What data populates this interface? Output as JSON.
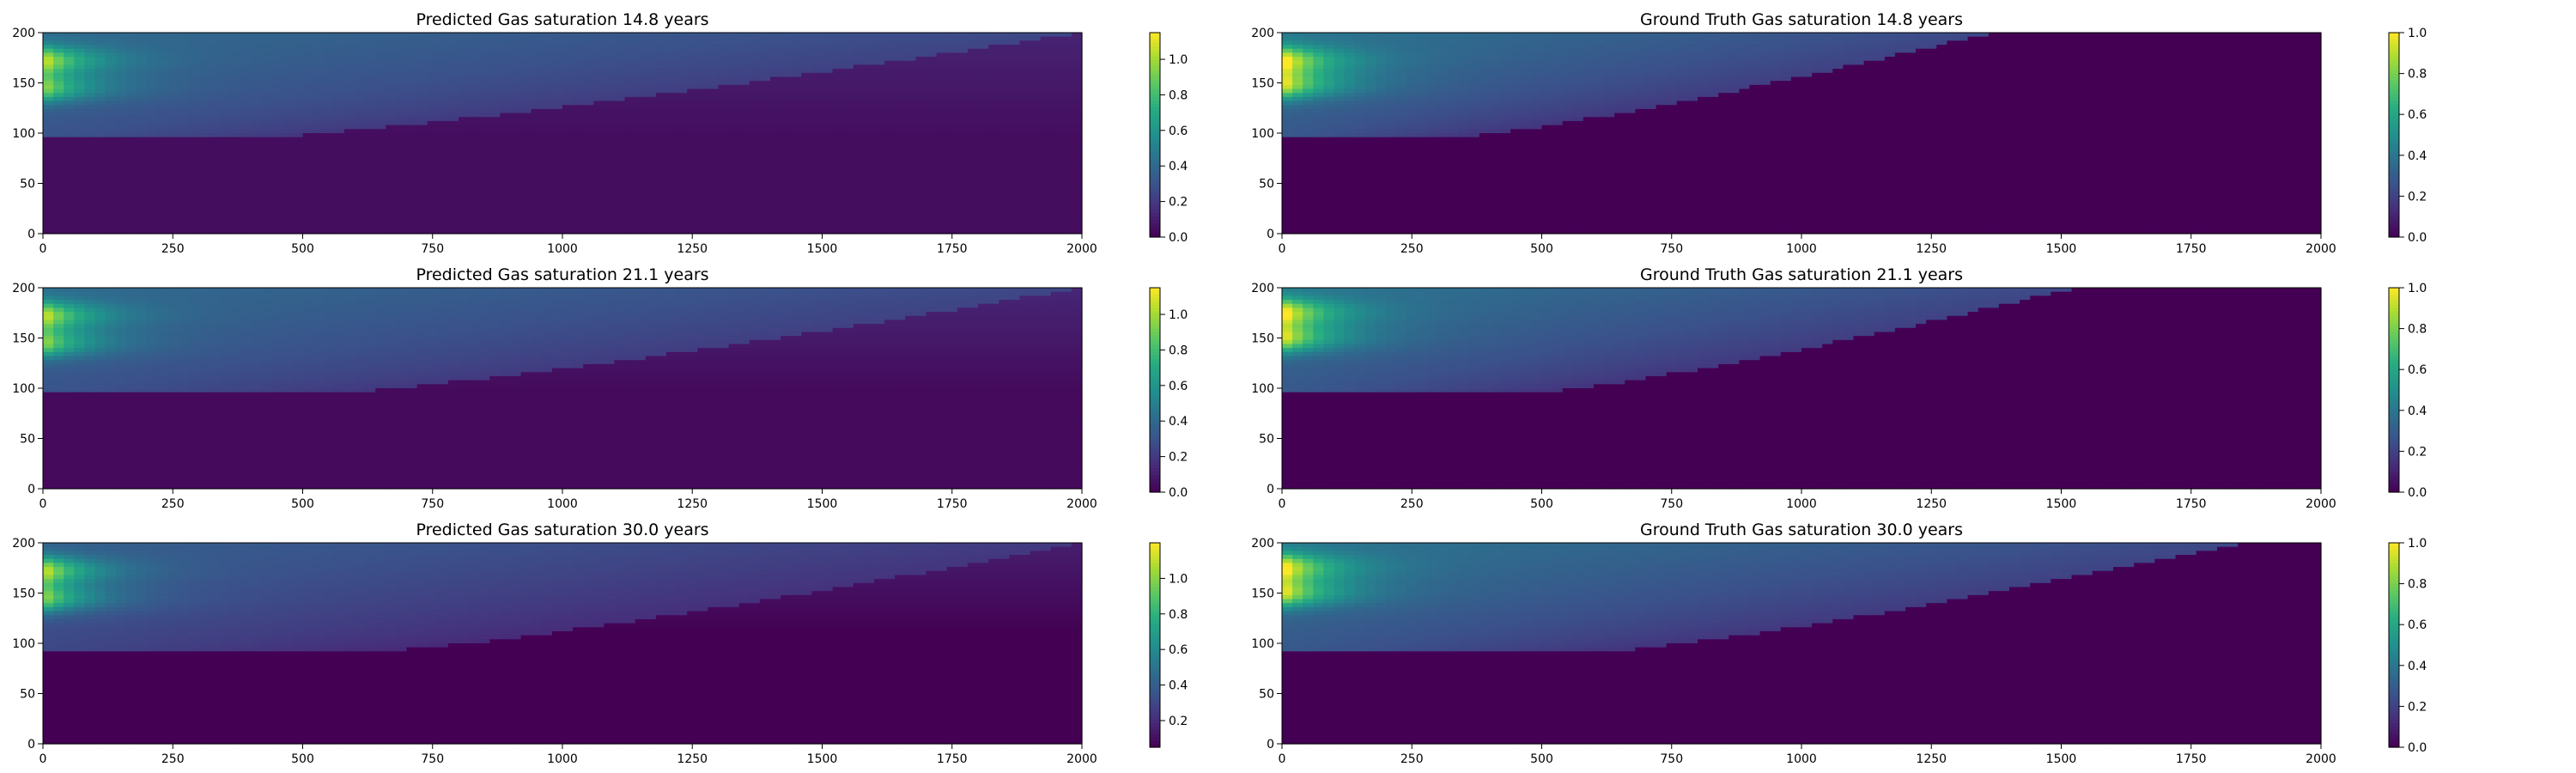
{
  "chart_data": [
    {
      "type": "heatmap",
      "title": "Predicted Gas saturation 14.8 years",
      "variant": "predicted",
      "time_years": 14.8,
      "xlim": [
        0,
        2000
      ],
      "ylim": [
        0,
        200
      ],
      "xticks": [
        "0",
        "250",
        "500",
        "750",
        "1000",
        "1250",
        "1500",
        "1750",
        "2000"
      ],
      "yticks": [
        "0",
        "50",
        "100",
        "150",
        "200"
      ],
      "colormap": "viridis",
      "colorbar": {
        "vmin": 0.0,
        "vmax": 1.15,
        "ticks": [
          "0.0",
          "0.2",
          "0.4",
          "0.6",
          "0.8",
          "1.0"
        ]
      },
      "plume": {
        "base_depth": 95,
        "front_near_top": 2000,
        "front_at_base": 400,
        "background": 0.04,
        "peaks": [
          {
            "y": 172,
            "value": 1.1
          },
          {
            "y": 145,
            "value": 1.0
          }
        ],
        "residual_far": 0.08
      }
    },
    {
      "type": "heatmap",
      "title": "Ground Truth Gas saturation 14.8 years",
      "variant": "ground_truth",
      "time_years": 14.8,
      "xlim": [
        0,
        2000
      ],
      "ylim": [
        0,
        200
      ],
      "xticks": [
        "0",
        "250",
        "500",
        "750",
        "1000",
        "1250",
        "1500",
        "1750",
        "2000"
      ],
      "yticks": [
        "0",
        "50",
        "100",
        "150",
        "200"
      ],
      "colormap": "viridis",
      "colorbar": {
        "vmin": 0.0,
        "vmax": 1.0,
        "ticks": [
          "0.0",
          "0.2",
          "0.4",
          "0.6",
          "0.8",
          "1.0"
        ]
      },
      "plume": {
        "base_depth": 95,
        "front_near_top": 1370,
        "front_at_base": 320,
        "background": 0.0,
        "peaks": [
          {
            "y": 172,
            "value": 1.0
          },
          {
            "y": 148,
            "value": 0.95
          }
        ],
        "residual_far": 0.0
      }
    },
    {
      "type": "heatmap",
      "title": "Predicted Gas saturation 21.1 years",
      "variant": "predicted",
      "time_years": 21.1,
      "xlim": [
        0,
        2000
      ],
      "ylim": [
        0,
        200
      ],
      "xticks": [
        "0",
        "250",
        "500",
        "750",
        "1000",
        "1250",
        "1500",
        "1750",
        "2000"
      ],
      "yticks": [
        "0",
        "50",
        "100",
        "150",
        "200"
      ],
      "colormap": "viridis",
      "colorbar": {
        "vmin": 0.0,
        "vmax": 1.15,
        "ticks": [
          "0.0",
          "0.2",
          "0.4",
          "0.6",
          "0.8",
          "1.0"
        ]
      },
      "plume": {
        "base_depth": 95,
        "front_near_top": 2000,
        "front_at_base": 550,
        "background": 0.03,
        "peaks": [
          {
            "y": 172,
            "value": 1.1
          },
          {
            "y": 145,
            "value": 1.0
          }
        ],
        "residual_far": 0.1
      }
    },
    {
      "type": "heatmap",
      "title": "Ground Truth Gas saturation 21.1 years",
      "variant": "ground_truth",
      "time_years": 21.1,
      "xlim": [
        0,
        2000
      ],
      "ylim": [
        0,
        200
      ],
      "xticks": [
        "0",
        "250",
        "500",
        "750",
        "1000",
        "1250",
        "1500",
        "1750",
        "2000"
      ],
      "yticks": [
        "0",
        "50",
        "100",
        "150",
        "200"
      ],
      "colormap": "viridis",
      "colorbar": {
        "vmin": 0.0,
        "vmax": 1.0,
        "ticks": [
          "0.0",
          "0.2",
          "0.4",
          "0.6",
          "0.8",
          "1.0"
        ]
      },
      "plume": {
        "base_depth": 95,
        "front_near_top": 1530,
        "front_at_base": 480,
        "background": 0.0,
        "peaks": [
          {
            "y": 175,
            "value": 1.0
          },
          {
            "y": 150,
            "value": 0.95
          }
        ],
        "residual_far": 0.0
      }
    },
    {
      "type": "heatmap",
      "title": "Predicted Gas saturation 30.0 years",
      "variant": "predicted",
      "time_years": 30.0,
      "xlim": [
        0,
        2000
      ],
      "ylim": [
        0,
        200
      ],
      "xticks": [
        "0",
        "250",
        "500",
        "750",
        "1000",
        "1250",
        "1500",
        "1750",
        "2000"
      ],
      "yticks": [
        "0",
        "50",
        "100",
        "150",
        "200"
      ],
      "colormap": "viridis",
      "colorbar": {
        "vmin": 0.05,
        "vmax": 1.2,
        "ticks": [
          "0.2",
          "0.4",
          "0.6",
          "0.8",
          "1.0"
        ]
      },
      "plume": {
        "base_depth": 92,
        "front_near_top": 2000,
        "front_at_base": 650,
        "background": 0.03,
        "peaks": [
          {
            "y": 172,
            "value": 1.15
          },
          {
            "y": 145,
            "value": 1.05
          }
        ],
        "residual_far": 0.12
      }
    },
    {
      "type": "heatmap",
      "title": "Ground Truth Gas saturation 30.0 years",
      "variant": "ground_truth",
      "time_years": 30.0,
      "xlim": [
        0,
        2000
      ],
      "ylim": [
        0,
        200
      ],
      "xticks": [
        "0",
        "250",
        "500",
        "750",
        "1000",
        "1250",
        "1500",
        "1750",
        "2000"
      ],
      "yticks": [
        "0",
        "50",
        "100",
        "150",
        "200"
      ],
      "colormap": "viridis",
      "colorbar": {
        "vmin": 0.0,
        "vmax": 1.0,
        "ticks": [
          "0.0",
          "0.2",
          "0.4",
          "0.6",
          "0.8",
          "1.0"
        ]
      },
      "plume": {
        "base_depth": 92,
        "front_near_top": 1850,
        "front_at_base": 620,
        "background": 0.0,
        "peaks": [
          {
            "y": 175,
            "value": 1.0
          },
          {
            "y": 150,
            "value": 0.95
          }
        ],
        "residual_far": 0.0
      }
    }
  ]
}
